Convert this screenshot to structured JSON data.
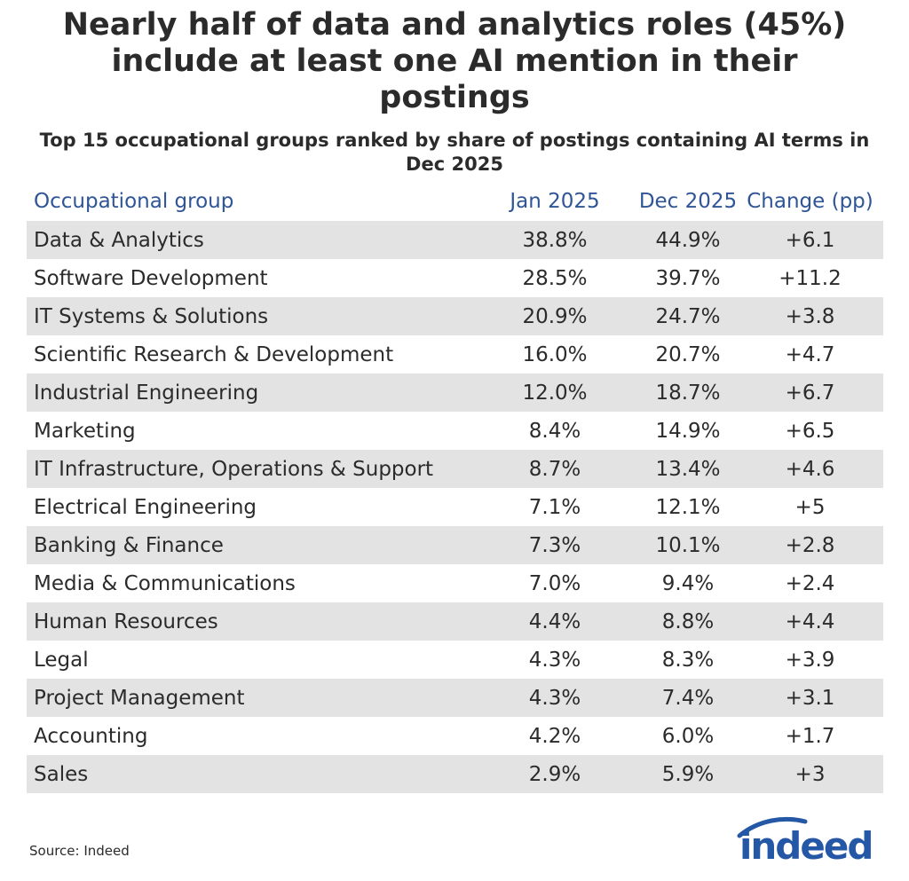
{
  "header": {
    "title": "Nearly half of data and analytics roles (45%) include at least one AI mention in their postings",
    "subtitle": "Top 15 occupational groups ranked by share of postings containing AI terms in Dec 2025"
  },
  "chart_data": {
    "type": "table",
    "columns": [
      "Occupational group",
      "Jan 2025",
      "Dec 2025",
      "Change (pp)"
    ],
    "rows": [
      {
        "group": "Data & Analytics",
        "jan": "38.8%",
        "dec": "44.9%",
        "change": "+6.1"
      },
      {
        "group": "Software Development",
        "jan": "28.5%",
        "dec": "39.7%",
        "change": "+11.2"
      },
      {
        "group": "IT Systems & Solutions",
        "jan": "20.9%",
        "dec": "24.7%",
        "change": "+3.8"
      },
      {
        "group": "Scientific Research & Development",
        "jan": "16.0%",
        "dec": "20.7%",
        "change": "+4.7"
      },
      {
        "group": "Industrial Engineering",
        "jan": "12.0%",
        "dec": "18.7%",
        "change": "+6.7"
      },
      {
        "group": "Marketing",
        "jan": "8.4%",
        "dec": "14.9%",
        "change": "+6.5"
      },
      {
        "group": "IT Infrastructure, Operations & Support",
        "jan": "8.7%",
        "dec": "13.4%",
        "change": "+4.6"
      },
      {
        "group": "Electrical Engineering",
        "jan": "7.1%",
        "dec": "12.1%",
        "change": "+5"
      },
      {
        "group": "Banking & Finance",
        "jan": "7.3%",
        "dec": "10.1%",
        "change": "+2.8"
      },
      {
        "group": "Media & Communications",
        "jan": "7.0%",
        "dec": "9.4%",
        "change": "+2.4"
      },
      {
        "group": "Human Resources",
        "jan": "4.4%",
        "dec": "8.8%",
        "change": "+4.4"
      },
      {
        "group": "Legal",
        "jan": "4.3%",
        "dec": "8.3%",
        "change": "+3.9"
      },
      {
        "group": "Project Management",
        "jan": "4.3%",
        "dec": "7.4%",
        "change": "+3.1"
      },
      {
        "group": "Accounting",
        "jan": "4.2%",
        "dec": "6.0%",
        "change": "+1.7"
      },
      {
        "group": "Sales",
        "jan": "2.9%",
        "dec": "5.9%",
        "change": "+3"
      }
    ]
  },
  "footer": {
    "source": "Source: Indeed",
    "logo_text": "indeed"
  },
  "colors": {
    "header_text": "#2f5596",
    "row_shade": "#e3e3e3",
    "body_text": "#2b2b2b",
    "logo_blue": "#2557a7"
  }
}
